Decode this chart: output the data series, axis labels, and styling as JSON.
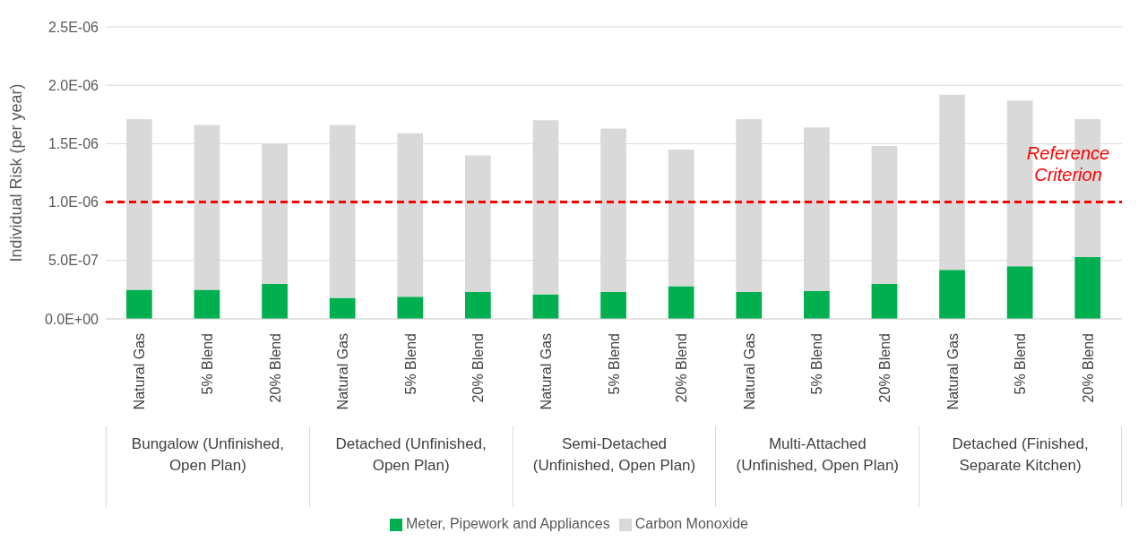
{
  "chart_data": {
    "type": "bar",
    "stacked": true,
    "ylabel": "Individual Risk (per year)",
    "categories": [
      "Natural Gas",
      "5% Blend",
      "20% Blend",
      "Natural Gas",
      "5% Blend",
      "20% Blend",
      "Natural Gas",
      "5% Blend",
      "20% Blend",
      "Natural Gas",
      "5% Blend",
      "20% Blend",
      "Natural Gas",
      "5% Blend",
      "20% Blend"
    ],
    "series": [
      {
        "name": "Meter, Pipework and Appliances",
        "color": "#00b050",
        "values": [
          2.5e-07,
          2.5e-07,
          3e-07,
          1.8e-07,
          1.9e-07,
          2.3e-07,
          2.1e-07,
          2.3e-07,
          2.8e-07,
          2.3e-07,
          2.4e-07,
          3e-07,
          4.2e-07,
          4.5e-07,
          5.3e-07
        ]
      },
      {
        "name": "Carbon Monoxide",
        "color": "#d9d9d9",
        "values": [
          1.46e-06,
          1.41e-06,
          1.2e-06,
          1.48e-06,
          1.4e-06,
          1.17e-06,
          1.49e-06,
          1.4e-06,
          1.17e-06,
          1.48e-06,
          1.4e-06,
          1.18e-06,
          1.5e-06,
          1.42e-06,
          1.18e-06
        ]
      }
    ],
    "annotations": [
      "Bungalow (Unfinished, Open Plan)",
      "Detached (Unfinished, Open Plan)",
      "Semi-Detached (Unfinished, Open Plan)",
      "Multi-Attached (Unfinished, Open Plan)",
      "Detached (Finished, Separate Kitchen)"
    ],
    "ylim": [
      0,
      2.5e-06
    ],
    "yticks": [
      {
        "value": 0,
        "label": "0.0E+00"
      },
      {
        "value": 5e-07,
        "label": "5.0E-07"
      },
      {
        "value": 1e-06,
        "label": "1.0E-06"
      },
      {
        "value": 1.5e-06,
        "label": "1.5E-06"
      },
      {
        "value": 2e-06,
        "label": "2.0E-06"
      },
      {
        "value": 2.5e-06,
        "label": "2.5E-06"
      }
    ],
    "ref_lines": [
      {
        "axis": "y",
        "value": 1e-06,
        "label": "Reference Criterion",
        "color": "#ff0000",
        "line_style": "dashed"
      }
    ],
    "grid": "y",
    "legend": "bottom"
  }
}
